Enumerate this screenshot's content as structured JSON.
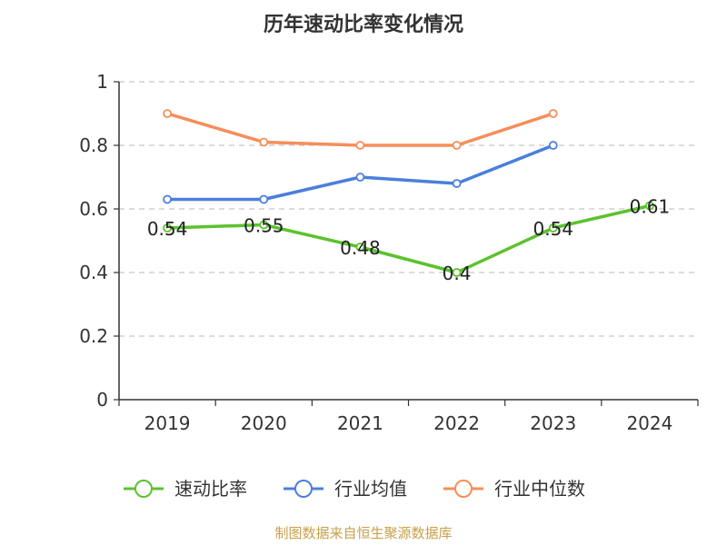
{
  "chart_data": {
    "type": "line",
    "title": "历年速动比率变化情况",
    "categories": [
      "2019",
      "2020",
      "2021",
      "2022",
      "2023",
      "2024"
    ],
    "ylim": [
      0,
      1
    ],
    "yticks": [
      0,
      0.2,
      0.4,
      0.6,
      0.8,
      1
    ],
    "ytick_labels": [
      "0",
      "0.2",
      "0.4",
      "0.6",
      "0.8",
      "1"
    ],
    "grid": true,
    "legend_position": "bottom",
    "series": [
      {
        "name": "速动比率",
        "color": "#5cc22d",
        "values": [
          0.54,
          0.55,
          0.48,
          0.4,
          0.54,
          0.61
        ],
        "data_labels": [
          "0.54",
          "0.55",
          "0.48",
          "0.4",
          "0.54",
          "0.61"
        ]
      },
      {
        "name": "行业均值",
        "color": "#4a7fdc",
        "values": [
          0.63,
          0.63,
          0.7,
          0.68,
          0.8,
          null
        ]
      },
      {
        "name": "行业中位数",
        "color": "#f58e5a",
        "values": [
          0.9,
          0.81,
          0.8,
          0.8,
          0.9,
          null
        ]
      }
    ]
  },
  "source": "制图数据来自恒生聚源数据库"
}
